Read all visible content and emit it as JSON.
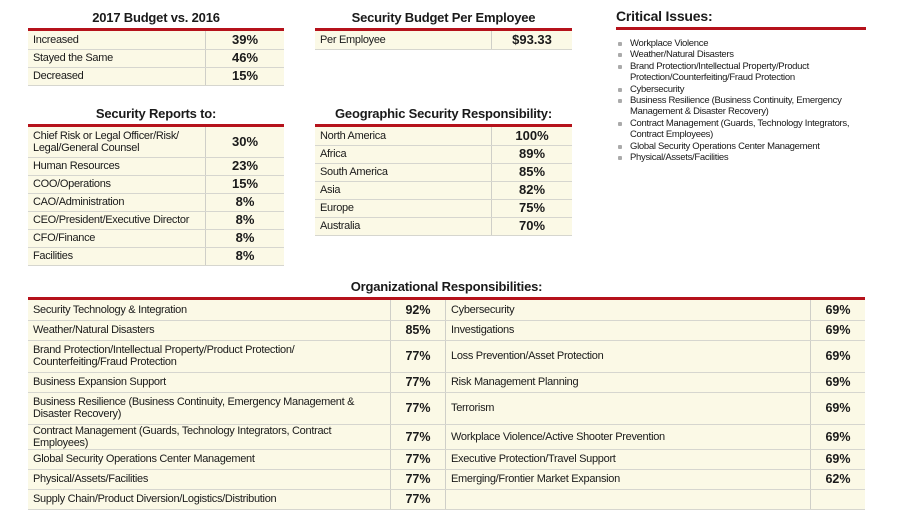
{
  "budget": {
    "title": "2017 Budget vs. 2016",
    "rows": [
      [
        "Increased",
        "39%"
      ],
      [
        "Stayed the Same",
        "46%"
      ],
      [
        "Decreased",
        "15%"
      ]
    ]
  },
  "per_employee": {
    "title": "Security Budget Per Employee",
    "rows": [
      [
        "Per Employee",
        "$93.33"
      ]
    ]
  },
  "critical": {
    "title": "Critical Issues:",
    "items": [
      "Workplace Violence",
      "Weather/Natural Disasters",
      "Brand Protection/Intellectual Property/Product Protection/Counterfeiting/Fraud Protection",
      "Cybersecurity",
      "Business Resilience (Business Continuity, Emergency Management & Disaster Recovery)",
      "Contract Management (Guards, Technology Integrators, Contract Employees)",
      "Global Security Operations Center Management",
      "Physical/Assets/Facilities"
    ]
  },
  "reports": {
    "title": "Security Reports to:",
    "rows": [
      [
        "Chief Risk or Legal Officer/Risk/ Legal/General Counsel",
        "30%"
      ],
      [
        "Human Resources",
        "23%"
      ],
      [
        "COO/Operations",
        "15%"
      ],
      [
        "CAO/Administration",
        "8%"
      ],
      [
        "CEO/President/Executive Director",
        "8%"
      ],
      [
        "CFO/Finance",
        "8%"
      ],
      [
        "Facilities",
        "8%"
      ]
    ]
  },
  "geo": {
    "title": "Geographic Security Responsibility:",
    "rows": [
      [
        "North America",
        "100%"
      ],
      [
        "Africa",
        "89%"
      ],
      [
        "South America",
        "85%"
      ],
      [
        "Asia",
        "82%"
      ],
      [
        "Europe",
        "75%"
      ],
      [
        "Australia",
        "70%"
      ]
    ]
  },
  "org": {
    "title": "Organizational Responsibilities:",
    "rows": [
      [
        "Security Technology & Integration",
        "92%",
        "Cybersecurity",
        "69%"
      ],
      [
        "Weather/Natural Disasters",
        "85%",
        "Investigations",
        "69%"
      ],
      [
        "Brand Protection/Intellectual Property/Product Protection/ Counterfeiting/Fraud Protection",
        "77%",
        "Loss Prevention/Asset Protection",
        "69%"
      ],
      [
        "Business Expansion Support",
        "77%",
        "Risk Management Planning",
        "69%"
      ],
      [
        "Business Resilience (Business Continuity, Emergency Management & Disaster Recovery)",
        "77%",
        "Terrorism",
        "69%"
      ],
      [
        "Contract Management (Guards, Technology Integrators, Contract Employees)",
        "77%",
        "Workplace Violence/Active Shooter Prevention",
        "69%"
      ],
      [
        "Global Security Operations Center Management",
        "77%",
        "Executive Protection/Travel Support",
        "69%"
      ],
      [
        "Physical/Assets/Facilities",
        "77%",
        "Emerging/Frontier Market Expansion",
        "62%"
      ],
      [
        "Supply Chain/Product Diversion/Logistics/Distribution",
        "77%",
        "",
        ""
      ]
    ]
  }
}
